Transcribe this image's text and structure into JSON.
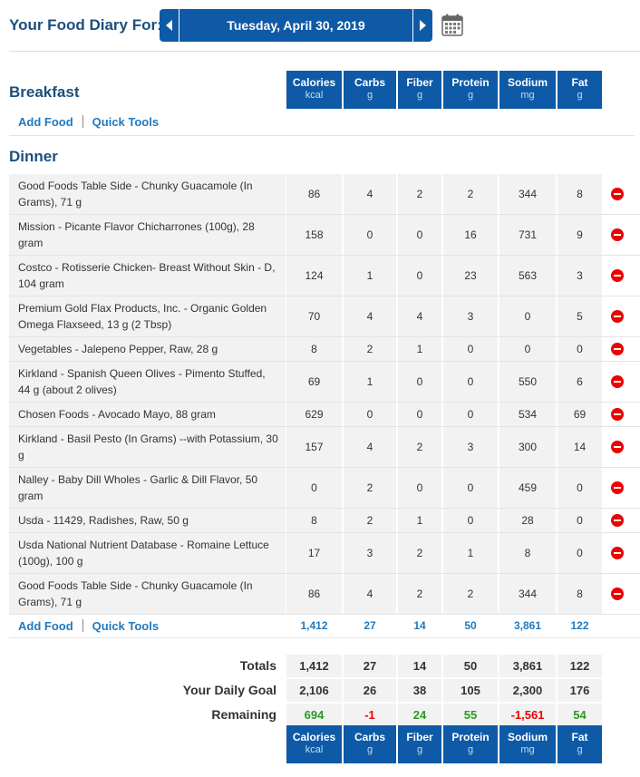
{
  "header": {
    "diary_label": "Your Food Diary For:",
    "date": "Tuesday, April 30, 2019"
  },
  "columns": [
    {
      "name": "Calories",
      "unit": "kcal"
    },
    {
      "name": "Carbs",
      "unit": "g"
    },
    {
      "name": "Fiber",
      "unit": "g"
    },
    {
      "name": "Protein",
      "unit": "g"
    },
    {
      "name": "Sodium",
      "unit": "mg"
    },
    {
      "name": "Fat",
      "unit": "g"
    }
  ],
  "breakfast": {
    "title": "Breakfast",
    "add_food": "Add Food",
    "quick_tools": "Quick Tools"
  },
  "dinner": {
    "title": "Dinner",
    "add_food": "Add Food",
    "quick_tools": "Quick Tools",
    "items": [
      {
        "name": "Good Foods Table Side - Chunky Guacamole (In Grams), 71 g",
        "values": [
          "86",
          "4",
          "2",
          "2",
          "344",
          "8"
        ]
      },
      {
        "name": "Mission - Picante Flavor Chicharrones (100g), 28 gram",
        "values": [
          "158",
          "0",
          "0",
          "16",
          "731",
          "9"
        ]
      },
      {
        "name": "Costco - Rotisserie Chicken- Breast Without Skin - D, 104 gram",
        "values": [
          "124",
          "1",
          "0",
          "23",
          "563",
          "3"
        ]
      },
      {
        "name": "Premium Gold Flax Products, Inc. - Organic Golden Omega Flaxseed, 13 g (2 Tbsp)",
        "values": [
          "70",
          "4",
          "4",
          "3",
          "0",
          "5"
        ]
      },
      {
        "name": "Vegetables - Jalepeno Pepper, Raw, 28 g",
        "values": [
          "8",
          "2",
          "1",
          "0",
          "0",
          "0"
        ]
      },
      {
        "name": "Kirkland - Spanish Queen Olives - Pimento Stuffed, 44 g (about 2 olives)",
        "values": [
          "69",
          "1",
          "0",
          "0",
          "550",
          "6"
        ]
      },
      {
        "name": "Chosen Foods - Avocado Mayo, 88 gram",
        "values": [
          "629",
          "0",
          "0",
          "0",
          "534",
          "69"
        ]
      },
      {
        "name": "Kirkland - Basil Pesto (In Grams) --with Potassium, 30 g",
        "values": [
          "157",
          "4",
          "2",
          "3",
          "300",
          "14"
        ]
      },
      {
        "name": "Nalley - Baby Dill Wholes - Garlic & Dill Flavor, 50 gram",
        "values": [
          "0",
          "2",
          "0",
          "0",
          "459",
          "0"
        ]
      },
      {
        "name": "Usda - 11429, Radishes, Raw, 50 g",
        "values": [
          "8",
          "2",
          "1",
          "0",
          "28",
          "0"
        ]
      },
      {
        "name": "Usda National Nutrient Database - Romaine Lettuce (100g), 100 g",
        "values": [
          "17",
          "3",
          "2",
          "1",
          "8",
          "0"
        ]
      },
      {
        "name": "Good Foods Table Side - Chunky Guacamole (In Grams), 71 g",
        "values": [
          "86",
          "4",
          "2",
          "2",
          "344",
          "8"
        ]
      }
    ],
    "totals": [
      "1,412",
      "27",
      "14",
      "50",
      "3,861",
      "122"
    ]
  },
  "summary": {
    "totals_label": "Totals",
    "totals": [
      "1,412",
      "27",
      "14",
      "50",
      "3,861",
      "122"
    ],
    "goal_label": "Your Daily Goal",
    "goal": [
      "2,106",
      "26",
      "38",
      "105",
      "2,300",
      "176"
    ],
    "remaining_label": "Remaining",
    "remaining": [
      "694",
      "-1",
      "24",
      "55",
      "-1,561",
      "54"
    ],
    "remaining_status": [
      "positive",
      "negative",
      "positive",
      "positive",
      "negative",
      "positive"
    ]
  },
  "colors": {
    "header_blue": "#0e5aa7",
    "title_blue": "#1c4f7c",
    "link_blue": "#1f7ac0",
    "positive": "#2a9a21",
    "negative": "#ee0000"
  }
}
